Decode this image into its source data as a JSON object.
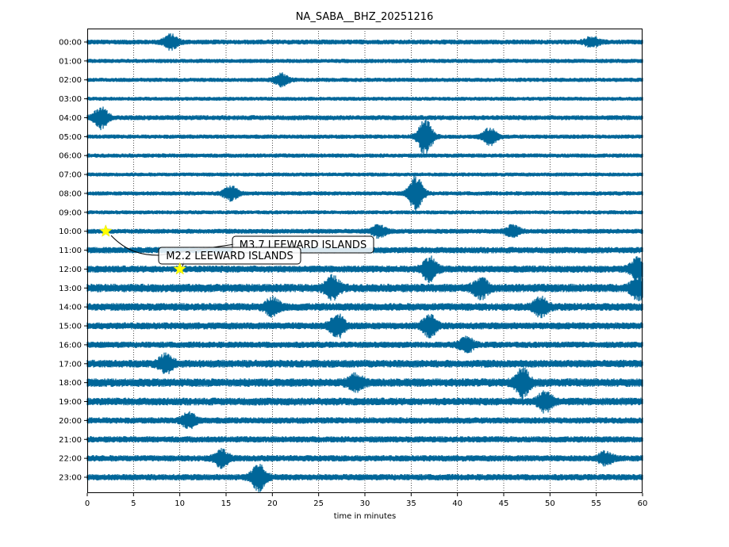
{
  "chart_data": {
    "type": "line",
    "title": "NA_SABA__BHZ_20251216",
    "xlabel": "time in minutes",
    "ylabel": "",
    "xlim": [
      0,
      60
    ],
    "x_ticks": [
      0,
      5,
      10,
      15,
      20,
      25,
      30,
      35,
      40,
      45,
      50,
      55,
      60
    ],
    "x_tick_labels": [
      "0",
      "5",
      "10",
      "15",
      "20",
      "25",
      "30",
      "35",
      "40",
      "45",
      "50",
      "55",
      "60"
    ],
    "y_tick_labels": [
      "00:00",
      "01:00",
      "02:00",
      "03:00",
      "04:00",
      "05:00",
      "06:00",
      "07:00",
      "08:00",
      "09:00",
      "10:00",
      "11:00",
      "12:00",
      "13:00",
      "14:00",
      "15:00",
      "16:00",
      "17:00",
      "18:00",
      "19:00",
      "20:00",
      "21:00",
      "22:00",
      "23:00"
    ],
    "trace_color": "#006699",
    "grid": "vertical dotted at each x tick",
    "row_noise_levels": [
      0.35,
      0.3,
      0.3,
      0.28,
      0.35,
      0.3,
      0.3,
      0.28,
      0.3,
      0.28,
      0.35,
      0.45,
      0.5,
      0.6,
      0.55,
      0.5,
      0.45,
      0.55,
      0.6,
      0.55,
      0.45,
      0.45,
      0.45,
      0.45
    ],
    "bursts": [
      {
        "row": 0,
        "x": 9,
        "amp": 0.6
      },
      {
        "row": 0,
        "x": 54.5,
        "amp": 0.4
      },
      {
        "row": 2,
        "x": 21,
        "amp": 0.5
      },
      {
        "row": 4,
        "x": 1.5,
        "amp": 0.9
      },
      {
        "row": 5,
        "x": 36.5,
        "amp": 1.6
      },
      {
        "row": 5,
        "x": 43.5,
        "amp": 0.7
      },
      {
        "row": 8,
        "x": 15.5,
        "amp": 0.6
      },
      {
        "row": 8,
        "x": 35.5,
        "amp": 1.5
      },
      {
        "row": 10,
        "x": 31.5,
        "amp": 0.5
      },
      {
        "row": 10,
        "x": 46,
        "amp": 0.5
      },
      {
        "row": 12,
        "x": 37,
        "amp": 1.0
      },
      {
        "row": 12,
        "x": 59.5,
        "amp": 0.9
      },
      {
        "row": 13,
        "x": 26.5,
        "amp": 0.9
      },
      {
        "row": 13,
        "x": 42.5,
        "amp": 0.8
      },
      {
        "row": 13,
        "x": 59.5,
        "amp": 0.9
      },
      {
        "row": 14,
        "x": 20,
        "amp": 0.7
      },
      {
        "row": 14,
        "x": 49,
        "amp": 0.7
      },
      {
        "row": 15,
        "x": 27,
        "amp": 1.0
      },
      {
        "row": 15,
        "x": 37,
        "amp": 0.9
      },
      {
        "row": 16,
        "x": 41,
        "amp": 0.6
      },
      {
        "row": 17,
        "x": 8.5,
        "amp": 0.7
      },
      {
        "row": 18,
        "x": 47,
        "amp": 1.2
      },
      {
        "row": 18,
        "x": 29,
        "amp": 0.6
      },
      {
        "row": 19,
        "x": 49.5,
        "amp": 0.8
      },
      {
        "row": 20,
        "x": 11,
        "amp": 0.6
      },
      {
        "row": 22,
        "x": 14.5,
        "amp": 0.7
      },
      {
        "row": 22,
        "x": 56,
        "amp": 0.5
      },
      {
        "row": 23,
        "x": 18.5,
        "amp": 1.1
      }
    ],
    "events": [
      {
        "label": "M3.7 LEEWARD ISLANDS",
        "row": 10,
        "x": 2.0,
        "marker_color": "#ffff00"
      },
      {
        "label": "M2.2 LEEWARD ISLANDS",
        "row": 12,
        "x": 10.0,
        "marker_color": "#ffff00"
      }
    ]
  }
}
